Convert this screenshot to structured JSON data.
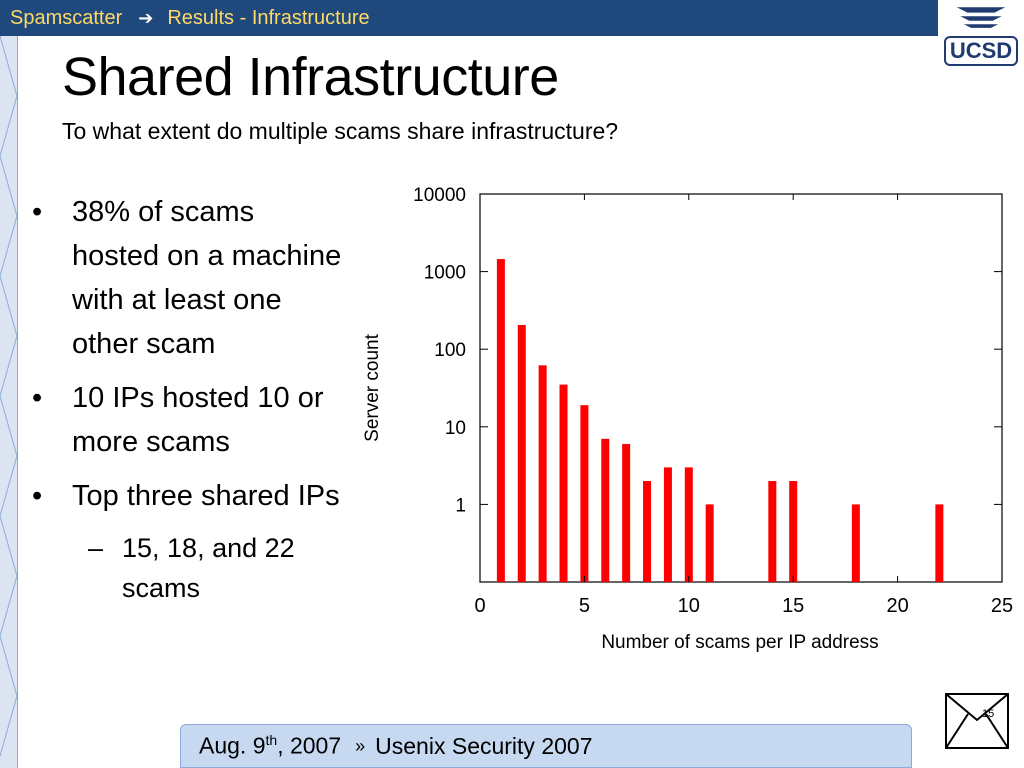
{
  "header": {
    "breadcrumb_root": "Spamscatter",
    "breadcrumb_current": "Results - Infrastructure",
    "logo_text": "UCSD"
  },
  "slide": {
    "title": "Shared Infrastructure",
    "subtitle": "To what extent do multiple scams share infrastructure?",
    "bullets": [
      "38% of scams hosted on a machine with at least one other scam",
      "10 IPs hosted 10 or more scams",
      "Top three shared IPs"
    ],
    "sub_bullet": "15, 18, and 22 scams",
    "page_number": "15"
  },
  "footer": {
    "date_prefix": "Aug. 9",
    "date_sup": "th",
    "date_suffix": ", 2007",
    "event": "Usenix Security 2007"
  },
  "colors": {
    "bar": "#ff0000",
    "header_bg": "#1f497d",
    "header_text": "#ffd966"
  },
  "chart_data": {
    "type": "bar",
    "xlabel": "Number of scams per IP address",
    "ylabel": "Server count",
    "xlim": [
      0,
      25
    ],
    "ylim": [
      0.1,
      10000
    ],
    "y_scale": "log",
    "grid": false,
    "x_ticks": [
      "0",
      "5",
      "10",
      "15",
      "20",
      "25"
    ],
    "y_ticks": [
      "1",
      "10",
      "100",
      "1000",
      "10000"
    ],
    "x": [
      1,
      2,
      3,
      4,
      5,
      6,
      7,
      8,
      9,
      10,
      11,
      14,
      15,
      18,
      22
    ],
    "values": [
      1450,
      205,
      62,
      35,
      19,
      7,
      6,
      2,
      3,
      3,
      1,
      2,
      2,
      1,
      1
    ]
  }
}
